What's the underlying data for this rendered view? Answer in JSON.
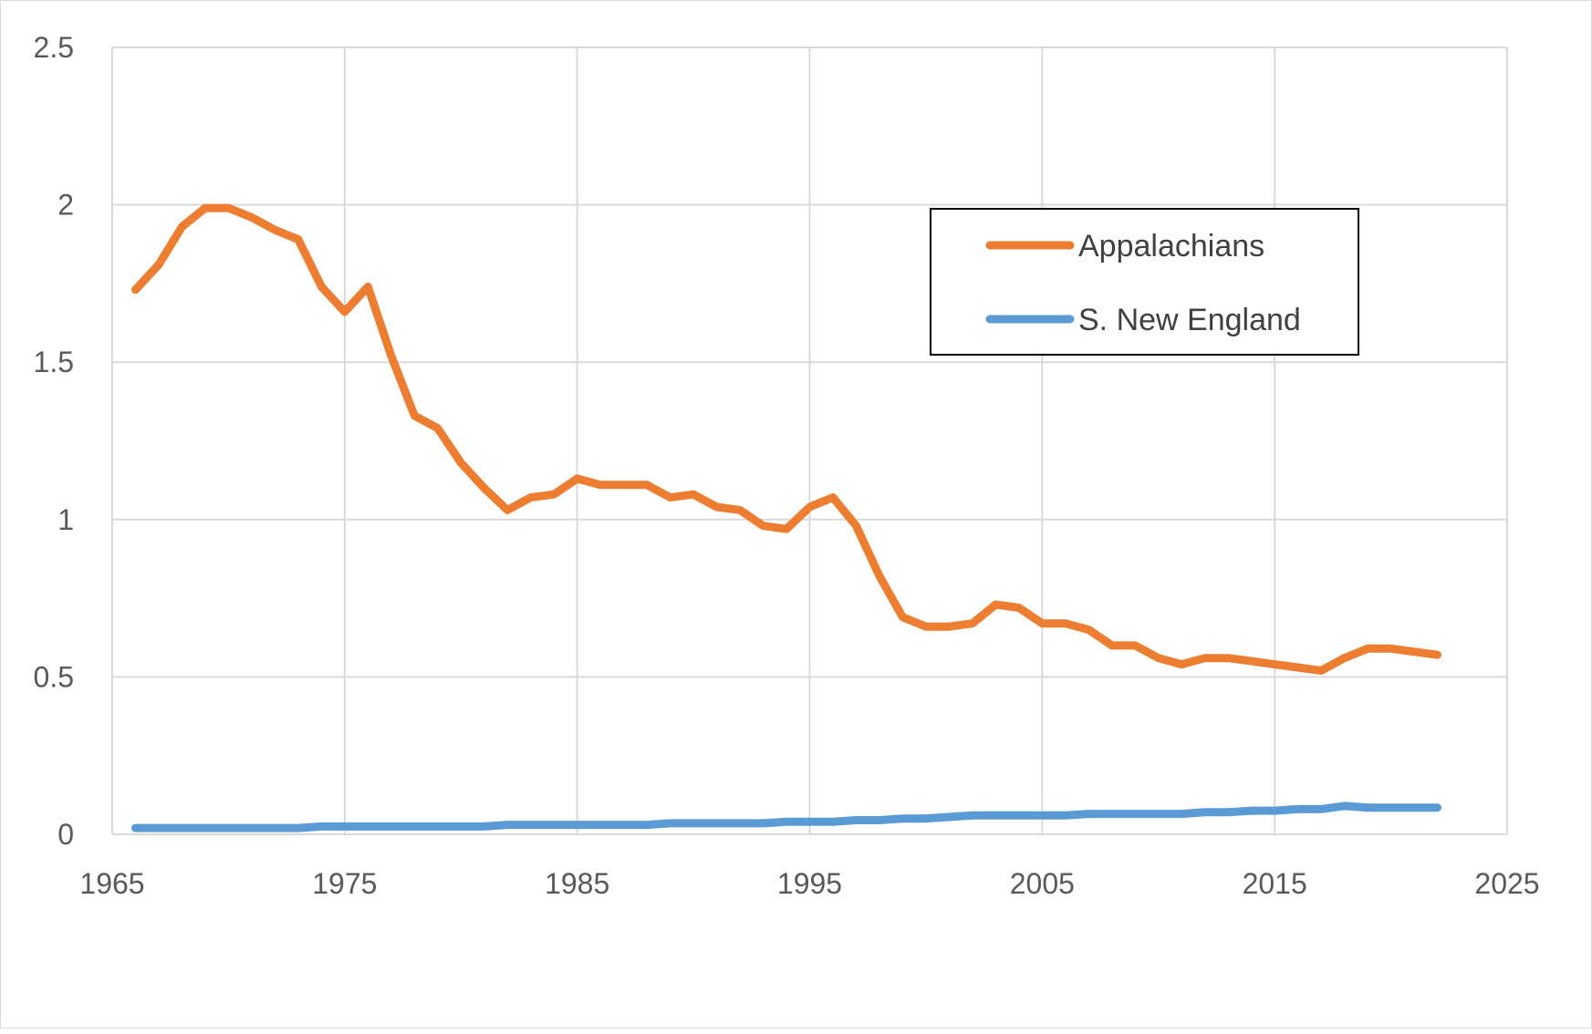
{
  "chart_data": {
    "type": "line",
    "title": "",
    "xlabel": "",
    "ylabel": "",
    "xlim": [
      1965,
      2025
    ],
    "ylim": [
      0,
      2.5
    ],
    "xticks": [
      1965,
      1975,
      1985,
      1995,
      2005,
      2015,
      2025
    ],
    "yticks": [
      0,
      0.5,
      1,
      1.5,
      2,
      2.5
    ],
    "xtick_labels": [
      "1965",
      "1975",
      "1985",
      "1995",
      "2005",
      "2015",
      "2025"
    ],
    "ytick_labels": [
      "0",
      "0.5",
      "1",
      "1.5",
      "2",
      "2.5"
    ],
    "grid": true,
    "legend_position": "top-right",
    "x": [
      1966,
      1967,
      1968,
      1969,
      1970,
      1971,
      1972,
      1973,
      1974,
      1975,
      1976,
      1977,
      1978,
      1979,
      1980,
      1981,
      1982,
      1983,
      1984,
      1985,
      1986,
      1987,
      1988,
      1989,
      1990,
      1991,
      1992,
      1993,
      1994,
      1995,
      1996,
      1997,
      1998,
      1999,
      2000,
      2001,
      2002,
      2003,
      2004,
      2005,
      2006,
      2007,
      2008,
      2009,
      2010,
      2011,
      2012,
      2013,
      2014,
      2015,
      2016,
      2017,
      2018,
      2019,
      2020,
      2021,
      2022
    ],
    "series": [
      {
        "name": "Appalachians",
        "color": "#ED7D31",
        "values": [
          1.73,
          1.81,
          1.93,
          1.99,
          1.99,
          1.96,
          1.92,
          1.89,
          1.74,
          1.66,
          1.74,
          1.52,
          1.33,
          1.29,
          1.18,
          1.1,
          1.03,
          1.07,
          1.08,
          1.13,
          1.11,
          1.11,
          1.11,
          1.07,
          1.08,
          1.04,
          1.03,
          0.98,
          0.97,
          1.04,
          1.07,
          0.98,
          0.82,
          0.69,
          0.66,
          0.66,
          0.67,
          0.73,
          0.72,
          0.67,
          0.67,
          0.65,
          0.6,
          0.6,
          0.56,
          0.54,
          0.56,
          0.56,
          0.55,
          0.54,
          0.53,
          0.52,
          0.56,
          0.59,
          0.59,
          0.58,
          0.57
        ]
      },
      {
        "name": "S. New England",
        "color": "#5B9BD5",
        "values": [
          0.02,
          0.02,
          0.02,
          0.02,
          0.02,
          0.02,
          0.02,
          0.02,
          0.025,
          0.025,
          0.025,
          0.025,
          0.025,
          0.025,
          0.025,
          0.025,
          0.03,
          0.03,
          0.03,
          0.03,
          0.03,
          0.03,
          0.03,
          0.035,
          0.035,
          0.035,
          0.035,
          0.035,
          0.04,
          0.04,
          0.04,
          0.045,
          0.045,
          0.05,
          0.05,
          0.055,
          0.06,
          0.06,
          0.06,
          0.06,
          0.06,
          0.065,
          0.065,
          0.065,
          0.065,
          0.065,
          0.07,
          0.07,
          0.075,
          0.075,
          0.08,
          0.08,
          0.09,
          0.085,
          0.085,
          0.085,
          0.085
        ]
      }
    ]
  }
}
